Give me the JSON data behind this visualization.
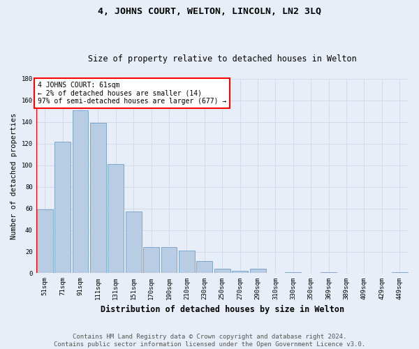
{
  "title": "4, JOHNS COURT, WELTON, LINCOLN, LN2 3LQ",
  "subtitle": "Size of property relative to detached houses in Welton",
  "xlabel": "Distribution of detached houses by size in Welton",
  "ylabel": "Number of detached properties",
  "categories": [
    "51sqm",
    "71sqm",
    "91sqm",
    "111sqm",
    "131sqm",
    "151sqm",
    "170sqm",
    "190sqm",
    "210sqm",
    "230sqm",
    "250sqm",
    "270sqm",
    "290sqm",
    "310sqm",
    "330sqm",
    "350sqm",
    "369sqm",
    "389sqm",
    "409sqm",
    "429sqm",
    "449sqm"
  ],
  "values": [
    59,
    122,
    151,
    139,
    101,
    57,
    24,
    24,
    21,
    11,
    4,
    2,
    4,
    0,
    1,
    0,
    1,
    0,
    0,
    0,
    1
  ],
  "bar_color": "#b8cce4",
  "bar_edge_color": "#7fa8d0",
  "grid_color": "#d0d8e8",
  "background_color": "#e8eef8",
  "annotation_line1": "4 JOHNS COURT: 61sqm",
  "annotation_line2": "← 2% of detached houses are smaller (14)",
  "annotation_line3": "97% of semi-detached houses are larger (677) →",
  "ylim": [
    0,
    180
  ],
  "yticks": [
    0,
    20,
    40,
    60,
    80,
    100,
    120,
    140,
    160,
    180
  ],
  "footer_line1": "Contains HM Land Registry data © Crown copyright and database right 2024.",
  "footer_line2": "Contains public sector information licensed under the Open Government Licence v3.0.",
  "title_fontsize": 9.5,
  "subtitle_fontsize": 8.5,
  "xlabel_fontsize": 8.5,
  "ylabel_fontsize": 7.5,
  "tick_fontsize": 6.5,
  "annotation_fontsize": 7,
  "footer_fontsize": 6.5
}
